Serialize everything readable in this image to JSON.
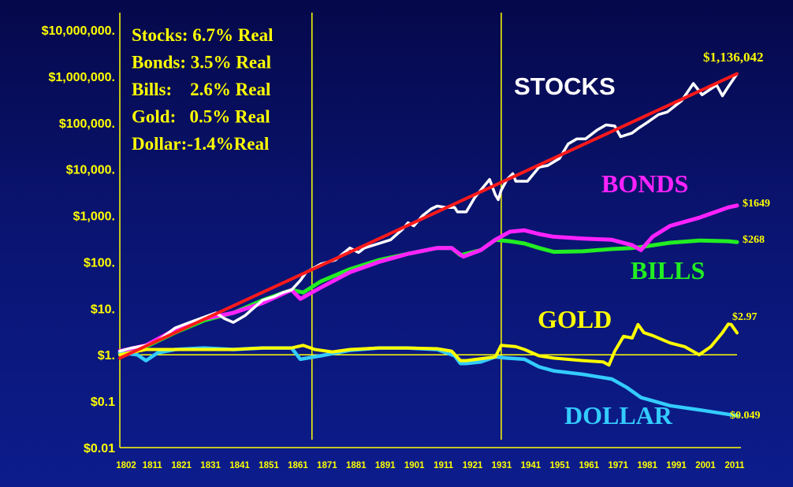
{
  "chart_data": {
    "type": "line",
    "y_scale": "log",
    "ylim": [
      0.01,
      10000000
    ],
    "xlim": [
      1802,
      2014
    ],
    "grid": false,
    "y_ticks": [
      {
        "value": 10000000,
        "label": "$10,000,000."
      },
      {
        "value": 1000000,
        "label": "$1,000,000."
      },
      {
        "value": 100000,
        "label": "$100,000."
      },
      {
        "value": 10000,
        "label": "$10,000."
      },
      {
        "value": 1000,
        "label": "$1,000."
      },
      {
        "value": 100,
        "label": "$100."
      },
      {
        "value": 10,
        "label": "$10."
      },
      {
        "value": 1,
        "label": "$1."
      },
      {
        "value": 0.1,
        "label": "$0.1"
      },
      {
        "value": 0.01,
        "label": "$0.01"
      }
    ],
    "x_ticks": [
      {
        "value": 1802,
        "label": "1802"
      },
      {
        "value": 1811,
        "label": "1811"
      },
      {
        "value": 1821,
        "label": "1821"
      },
      {
        "value": 1831,
        "label": "1831"
      },
      {
        "value": 1841,
        "label": "1841"
      },
      {
        "value": 1851,
        "label": "1851"
      },
      {
        "value": 1861,
        "label": "1861"
      },
      {
        "value": 1871,
        "label": "1871"
      },
      {
        "value": 1881,
        "label": "1881"
      },
      {
        "value": 1891,
        "label": "1891"
      },
      {
        "value": 1901,
        "label": "1901"
      },
      {
        "value": 1911,
        "label": "1911"
      },
      {
        "value": 1921,
        "label": "1921"
      },
      {
        "value": 1931,
        "label": "1931"
      },
      {
        "value": 1941,
        "label": "1941"
      },
      {
        "value": 1951,
        "label": "1951"
      },
      {
        "value": 1961,
        "label": "1961"
      },
      {
        "value": 1971,
        "label": "1971"
      },
      {
        "value": 1981,
        "label": "1981"
      },
      {
        "value": 1991,
        "label": "1991"
      },
      {
        "value": 2001,
        "label": "2001"
      },
      {
        "value": 2011,
        "label": "2011"
      }
    ],
    "reference_lines": {
      "vertical_years": [
        1868,
        1933
      ],
      "horizontal_value": 1
    },
    "stats_box": [
      "Stocks: 6.7% Real",
      "Bonds: 3.5% Real",
      "Bills:    2.6% Real",
      "Gold:   0.5% Real",
      "Dollar:-1.4%Real"
    ],
    "series": [
      {
        "name": "STOCKS",
        "color": "#ffffff",
        "end_label": "$1,136,042",
        "points": [
          [
            1802,
            1.2
          ],
          [
            1806,
            1.4
          ],
          [
            1811,
            1.6
          ],
          [
            1815,
            2.0
          ],
          [
            1821,
            3.8
          ],
          [
            1826,
            5.0
          ],
          [
            1831,
            6.5
          ],
          [
            1835,
            8.0
          ],
          [
            1838,
            6.0
          ],
          [
            1841,
            5.0
          ],
          [
            1845,
            7.0
          ],
          [
            1851,
            15
          ],
          [
            1855,
            18
          ],
          [
            1858,
            22
          ],
          [
            1861,
            25
          ],
          [
            1864,
            40
          ],
          [
            1866,
            60
          ],
          [
            1871,
            90
          ],
          [
            1876,
            110
          ],
          [
            1881,
            200
          ],
          [
            1884,
            160
          ],
          [
            1886,
            200
          ],
          [
            1891,
            250
          ],
          [
            1895,
            300
          ],
          [
            1899,
            500
          ],
          [
            1901,
            700
          ],
          [
            1903,
            600
          ],
          [
            1906,
            1000
          ],
          [
            1909,
            1400
          ],
          [
            1911,
            1600
          ],
          [
            1914,
            1500
          ],
          [
            1917,
            1500
          ],
          [
            1918,
            1200
          ],
          [
            1921,
            1200
          ],
          [
            1924,
            2500
          ],
          [
            1929,
            6000
          ],
          [
            1931,
            2800
          ],
          [
            1932,
            2200
          ],
          [
            1933,
            3500
          ],
          [
            1935,
            6000
          ],
          [
            1937,
            8000
          ],
          [
            1938,
            5500
          ],
          [
            1942,
            5500
          ],
          [
            1946,
            11000
          ],
          [
            1949,
            12000
          ],
          [
            1953,
            17000
          ],
          [
            1956,
            35000
          ],
          [
            1959,
            45000
          ],
          [
            1962,
            45000
          ],
          [
            1966,
            70000
          ],
          [
            1969,
            90000
          ],
          [
            1972,
            85000
          ],
          [
            1974,
            50000
          ],
          [
            1978,
            60000
          ],
          [
            1980,
            75000
          ],
          [
            1983,
            100000
          ],
          [
            1987,
            150000
          ],
          [
            1990,
            170000
          ],
          [
            1995,
            300000
          ],
          [
            1999,
            700000
          ],
          [
            2002,
            400000
          ],
          [
            2007,
            650000
          ],
          [
            2009,
            380000
          ],
          [
            2011,
            600000
          ],
          [
            2014,
            1136042
          ]
        ]
      },
      {
        "name": "BONDS",
        "color": "#ff22ff",
        "end_label": "$1649",
        "points": [
          [
            1802,
            1.2
          ],
          [
            1811,
            1.6
          ],
          [
            1821,
            3.5
          ],
          [
            1831,
            6.0
          ],
          [
            1841,
            8.0
          ],
          [
            1851,
            13
          ],
          [
            1861,
            25
          ],
          [
            1864,
            16
          ],
          [
            1871,
            28
          ],
          [
            1881,
            60
          ],
          [
            1891,
            100
          ],
          [
            1901,
            150
          ],
          [
            1911,
            200
          ],
          [
            1916,
            200
          ],
          [
            1920,
            130
          ],
          [
            1926,
            180
          ],
          [
            1931,
            300
          ],
          [
            1936,
            450
          ],
          [
            1941,
            480
          ],
          [
            1946,
            400
          ],
          [
            1951,
            350
          ],
          [
            1961,
            320
          ],
          [
            1971,
            300
          ],
          [
            1978,
            230
          ],
          [
            1981,
            180
          ],
          [
            1985,
            350
          ],
          [
            1991,
            600
          ],
          [
            2001,
            900
          ],
          [
            2011,
            1500
          ],
          [
            2014,
            1649
          ]
        ]
      },
      {
        "name": "BILLS",
        "color": "#22ee22",
        "end_label": "$268",
        "points": [
          [
            1802,
            1.1
          ],
          [
            1811,
            1.5
          ],
          [
            1821,
            3.0
          ],
          [
            1831,
            5.5
          ],
          [
            1841,
            8.0
          ],
          [
            1851,
            15
          ],
          [
            1861,
            25
          ],
          [
            1865,
            22
          ],
          [
            1871,
            38
          ],
          [
            1881,
            70
          ],
          [
            1891,
            110
          ],
          [
            1901,
            150
          ],
          [
            1911,
            200
          ],
          [
            1916,
            200
          ],
          [
            1919,
            140
          ],
          [
            1926,
            180
          ],
          [
            1931,
            300
          ],
          [
            1936,
            280
          ],
          [
            1941,
            250
          ],
          [
            1946,
            200
          ],
          [
            1951,
            165
          ],
          [
            1961,
            170
          ],
          [
            1971,
            190
          ],
          [
            1978,
            200
          ],
          [
            1981,
            210
          ],
          [
            1991,
            260
          ],
          [
            2001,
            290
          ],
          [
            2011,
            280
          ],
          [
            2014,
            268
          ]
        ]
      },
      {
        "name": "GOLD",
        "color": "#ffff00",
        "end_label": "$2.97",
        "points": [
          [
            1802,
            1.0
          ],
          [
            1811,
            1.3
          ],
          [
            1821,
            1.3
          ],
          [
            1831,
            1.3
          ],
          [
            1841,
            1.3
          ],
          [
            1851,
            1.4
          ],
          [
            1861,
            1.4
          ],
          [
            1865,
            1.6
          ],
          [
            1869,
            1.3
          ],
          [
            1875,
            1.15
          ],
          [
            1881,
            1.3
          ],
          [
            1891,
            1.4
          ],
          [
            1901,
            1.4
          ],
          [
            1911,
            1.35
          ],
          [
            1916,
            1.2
          ],
          [
            1919,
            0.75
          ],
          [
            1921,
            0.75
          ],
          [
            1931,
            0.9
          ],
          [
            1933,
            1.6
          ],
          [
            1938,
            1.5
          ],
          [
            1941,
            1.3
          ],
          [
            1946,
            0.95
          ],
          [
            1951,
            0.85
          ],
          [
            1961,
            0.75
          ],
          [
            1968,
            0.7
          ],
          [
            1970,
            0.6
          ],
          [
            1972,
            1.2
          ],
          [
            1975,
            2.5
          ],
          [
            1978,
            2.3
          ],
          [
            1980,
            4.5
          ],
          [
            1982,
            3.0
          ],
          [
            1985,
            2.6
          ],
          [
            1991,
            1.8
          ],
          [
            1996,
            1.5
          ],
          [
            2001,
            1.0
          ],
          [
            2005,
            1.5
          ],
          [
            2009,
            3.0
          ],
          [
            2011,
            4.6
          ],
          [
            2012,
            4.5
          ],
          [
            2014,
            2.97
          ]
        ]
      },
      {
        "name": "DOLLAR",
        "color": "#33ccff",
        "end_label": "$0.049",
        "points": [
          [
            1802,
            1.1
          ],
          [
            1808,
            1.0
          ],
          [
            1811,
            0.75
          ],
          [
            1815,
            1.1
          ],
          [
            1821,
            1.3
          ],
          [
            1831,
            1.4
          ],
          [
            1841,
            1.3
          ],
          [
            1851,
            1.4
          ],
          [
            1861,
            1.4
          ],
          [
            1864,
            0.8
          ],
          [
            1871,
            0.95
          ],
          [
            1881,
            1.25
          ],
          [
            1891,
            1.4
          ],
          [
            1901,
            1.4
          ],
          [
            1911,
            1.3
          ],
          [
            1917,
            0.95
          ],
          [
            1919,
            0.65
          ],
          [
            1921,
            0.65
          ],
          [
            1926,
            0.7
          ],
          [
            1931,
            0.9
          ],
          [
            1935,
            0.85
          ],
          [
            1941,
            0.8
          ],
          [
            1946,
            0.55
          ],
          [
            1951,
            0.45
          ],
          [
            1961,
            0.38
          ],
          [
            1971,
            0.3
          ],
          [
            1976,
            0.2
          ],
          [
            1981,
            0.12
          ],
          [
            1991,
            0.08
          ],
          [
            2001,
            0.065
          ],
          [
            2011,
            0.052
          ],
          [
            2014,
            0.049
          ]
        ]
      },
      {
        "name": "Stocks trend",
        "color": "#ff1a1a",
        "end_label": "",
        "points": [
          [
            1802,
            0.85
          ],
          [
            2014,
            1136042
          ]
        ]
      }
    ],
    "series_labels": {
      "stocks": "STOCKS",
      "bonds": "BONDS",
      "bills": "BILLS",
      "gold": "GOLD",
      "dollar": "DOLLAR"
    }
  }
}
